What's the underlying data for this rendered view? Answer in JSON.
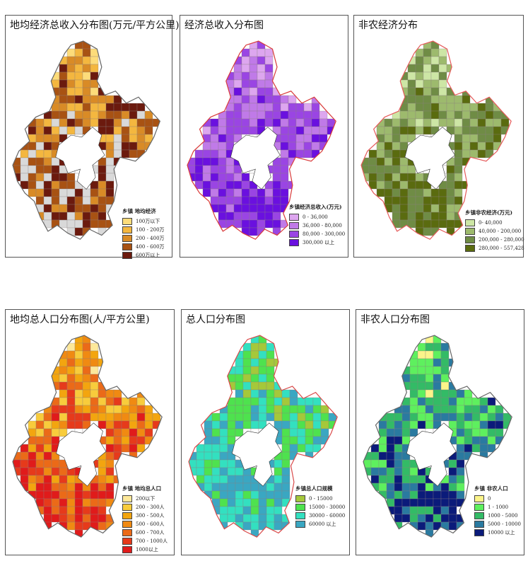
{
  "panels": [
    {
      "id": "p1",
      "title": "地均经济总收入分布图(万元/平方公里)",
      "legend_title": "乡镇 地均经济",
      "border": "#666666",
      "items": [
        {
          "label": "100万以下",
          "color": "#fddc7a"
        },
        {
          "label": "100 - 200万",
          "color": "#f4b73f"
        },
        {
          "label": "200 - 400万",
          "color": "#d98b26"
        },
        {
          "label": "400 - 600万",
          "color": "#a85213"
        },
        {
          "label": "600万以上",
          "color": "#6b1a0e"
        }
      ],
      "extra_colors": [
        "#d9d9d9"
      ]
    },
    {
      "id": "p2",
      "title": "经济总收入分布图",
      "legend_title": "乡镇经济总收入(万元)",
      "border": "#d93b3b",
      "items": [
        {
          "label": "0 - 36,000",
          "color": "#dda6ef"
        },
        {
          "label": "36,000 - 80,000",
          "color": "#c07ae8"
        },
        {
          "label": "80,000 - 300,000",
          "color": "#9a45e3"
        },
        {
          "label": "300,000 以上",
          "color": "#6a10df"
        }
      ]
    },
    {
      "id": "p3",
      "title": "非农经济分布",
      "legend_title": "乡镇非农经济(万元)",
      "border": "#e55a5a",
      "items": [
        {
          "label": "0- 40,000",
          "color": "#cde6a5"
        },
        {
          "label": "40,000 - 200,000",
          "color": "#9dba6d"
        },
        {
          "label": "200,000 - 280,000",
          "color": "#6f8c45"
        },
        {
          "label": "280,000 - 557,428",
          "color": "#5a6b0f"
        }
      ]
    },
    {
      "id": "p4",
      "title": "地均总人口分布图(人/平方公里)",
      "legend_title": "乡镇 地均总人口",
      "border": "#666666",
      "items": [
        {
          "label": "200以下",
          "color": "#fde89a"
        },
        {
          "label": "200 - 300人",
          "color": "#f8cc3c"
        },
        {
          "label": "300 - 500人",
          "color": "#f3a50f"
        },
        {
          "label": "500 - 600人",
          "color": "#f08a12"
        },
        {
          "label": "600 - 700人",
          "color": "#eb6a18"
        },
        {
          "label": "700 - 1000人",
          "color": "#e63a1b"
        },
        {
          "label": "1000以上",
          "color": "#e01b1b"
        }
      ]
    },
    {
      "id": "p5",
      "title": "总人口分布图",
      "legend_title": "乡镇总人口规模",
      "border": "#d94a4a",
      "items": [
        {
          "label": "0 - 15000",
          "color": "#a5c83a"
        },
        {
          "label": "15000 - 30000",
          "color": "#4ee24e"
        },
        {
          "label": "30000 - 60000",
          "color": "#33e0c0"
        },
        {
          "label": "60000 以上",
          "color": "#3aa7c2"
        }
      ]
    },
    {
      "id": "p6",
      "title": "非农人口分布图",
      "legend_title": "乡镇 非农人口",
      "border": "#666666",
      "items": [
        {
          "label": "0",
          "color": "#fbf48a"
        },
        {
          "label": "1 - 1000",
          "color": "#5ef05e"
        },
        {
          "label": "1000 - 5000",
          "color": "#33bb66"
        },
        {
          "label": "5000 - 10000",
          "color": "#2a7aa0"
        },
        {
          "label": "10000 以上",
          "color": "#0b1b7a"
        }
      ]
    }
  ]
}
